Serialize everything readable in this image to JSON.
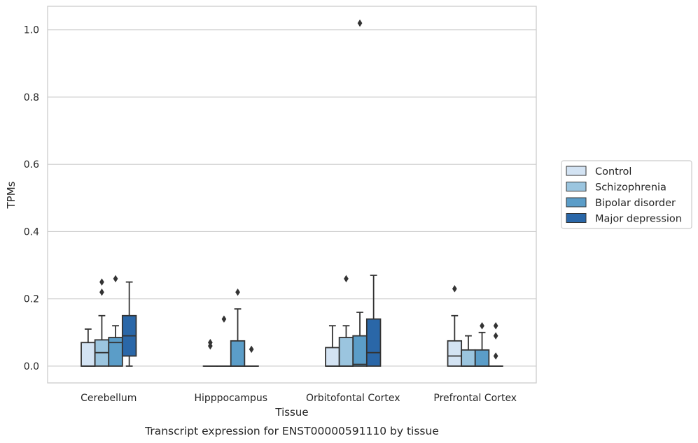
{
  "caption": "Transcript expression for ENST00000591110 by tissue",
  "chart_data": {
    "type": "box",
    "xlabel": "Tissue",
    "ylabel": "TPMs",
    "ylim": [
      -0.05,
      1.07
    ],
    "yticks": [
      0.0,
      0.2,
      0.4,
      0.6,
      0.8,
      1.0
    ],
    "ytick_labels": [
      "0.0",
      "0.2",
      "0.4",
      "0.6",
      "0.8",
      "1.0"
    ],
    "grid": "horizontal",
    "legend_position": "right",
    "categories": [
      "Cerebellum",
      "Hipppocampus",
      "Orbitofontal Cortex",
      "Prefrontal Cortex"
    ],
    "series": [
      {
        "name": "Control",
        "color": "#d3e3f3",
        "boxes": [
          {
            "q1": 0.0,
            "median": 0.0,
            "q3": 0.07,
            "whislo": 0.0,
            "whishi": 0.11,
            "fliers": []
          },
          {
            "q1": 0.0,
            "median": 0.0,
            "q3": 0.0,
            "whislo": 0.0,
            "whishi": 0.0,
            "fliers": [
              0.06,
              0.07
            ]
          },
          {
            "q1": 0.0,
            "median": 0.0,
            "q3": 0.055,
            "whislo": 0.0,
            "whishi": 0.12,
            "fliers": []
          },
          {
            "q1": 0.0,
            "median": 0.03,
            "q3": 0.075,
            "whislo": 0.0,
            "whishi": 0.15,
            "fliers": [
              0.23
            ]
          }
        ]
      },
      {
        "name": "Schizophrenia",
        "color": "#9bc5df",
        "boxes": [
          {
            "q1": 0.0,
            "median": 0.04,
            "q3": 0.078,
            "whislo": 0.0,
            "whishi": 0.15,
            "fliers": [
              0.22,
              0.25
            ]
          },
          {
            "q1": 0.0,
            "median": 0.0,
            "q3": 0.0,
            "whislo": 0.0,
            "whishi": 0.0,
            "fliers": [
              0.14
            ]
          },
          {
            "q1": 0.0,
            "median": 0.0,
            "q3": 0.085,
            "whislo": 0.0,
            "whishi": 0.12,
            "fliers": [
              0.26
            ]
          },
          {
            "q1": 0.0,
            "median": 0.0,
            "q3": 0.048,
            "whislo": 0.0,
            "whishi": 0.09,
            "fliers": []
          }
        ]
      },
      {
        "name": "Bipolar disorder",
        "color": "#5b9dc8",
        "boxes": [
          {
            "q1": 0.0,
            "median": 0.07,
            "q3": 0.085,
            "whislo": 0.0,
            "whishi": 0.12,
            "fliers": [
              0.26
            ]
          },
          {
            "q1": 0.0,
            "median": 0.0,
            "q3": 0.075,
            "whislo": 0.0,
            "whishi": 0.17,
            "fliers": [
              0.22
            ]
          },
          {
            "q1": 0.0,
            "median": 0.005,
            "q3": 0.09,
            "whislo": 0.0,
            "whishi": 0.16,
            "fliers": [
              1.02
            ]
          },
          {
            "q1": 0.0,
            "median": 0.0,
            "q3": 0.048,
            "whislo": 0.0,
            "whishi": 0.1,
            "fliers": [
              0.12
            ]
          }
        ]
      },
      {
        "name": "Major depression",
        "color": "#2a67a8",
        "boxes": [
          {
            "q1": 0.03,
            "median": 0.09,
            "q3": 0.15,
            "whislo": 0.0,
            "whishi": 0.25,
            "fliers": []
          },
          {
            "q1": 0.0,
            "median": 0.0,
            "q3": 0.0,
            "whislo": 0.0,
            "whishi": 0.0,
            "fliers": [
              0.05
            ]
          },
          {
            "q1": 0.0,
            "median": 0.04,
            "q3": 0.14,
            "whislo": 0.0,
            "whishi": 0.27,
            "fliers": []
          },
          {
            "q1": 0.0,
            "median": 0.0,
            "q3": 0.0,
            "whislo": 0.0,
            "whishi": 0.0,
            "fliers": [
              0.03,
              0.09,
              0.12
            ]
          }
        ]
      }
    ]
  }
}
